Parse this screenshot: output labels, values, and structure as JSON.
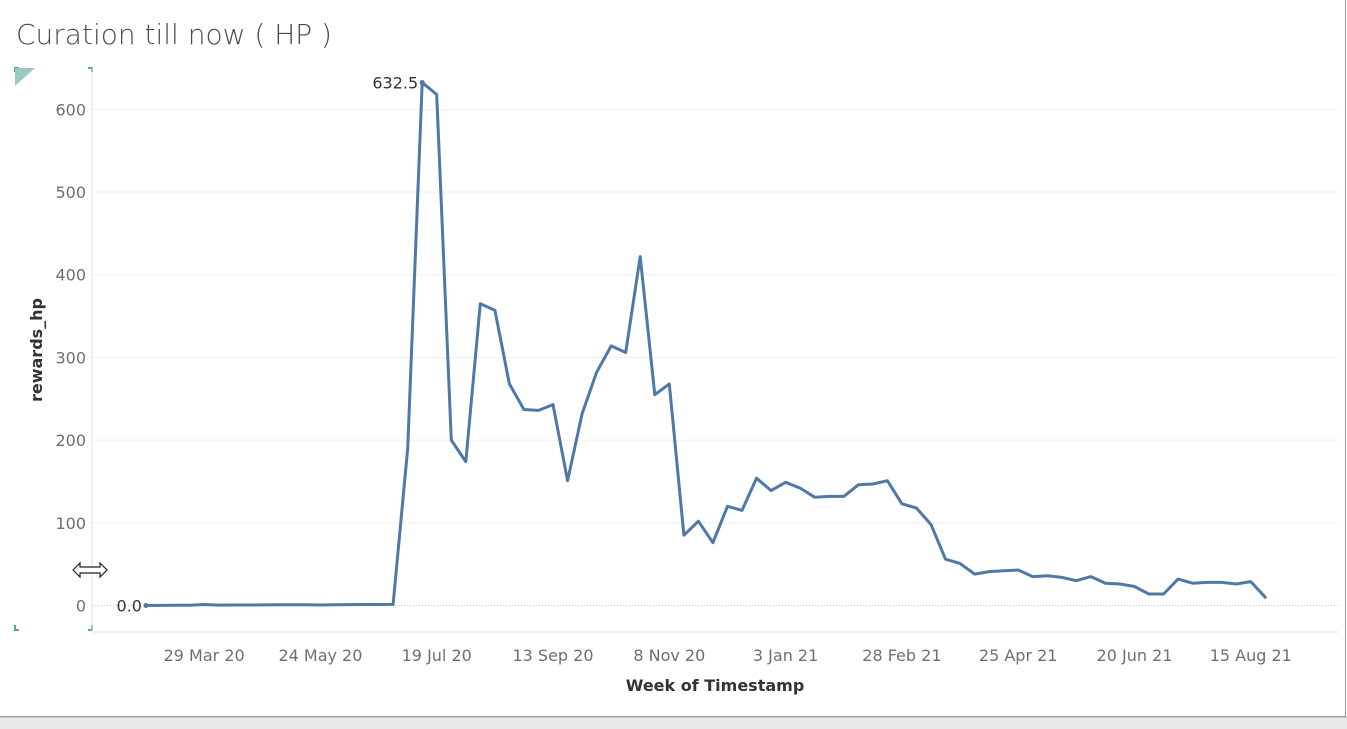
{
  "title": "Curation till now ( HP )",
  "chart_data": {
    "type": "line",
    "title": "Curation till now ( HP )",
    "xlabel": "Week of Timestamp",
    "ylabel": "rewards_hp",
    "ylim": [
      -32,
      650
    ],
    "y_ticks": [
      0,
      100,
      200,
      300,
      400,
      500,
      600
    ],
    "x_start": "2020-03-01",
    "x_end": "2021-08-29",
    "x_range": [
      "2020-02-04",
      "2021-09-26"
    ],
    "x_ticks": [
      {
        "date": "2020-03-29",
        "label": "29 Mar 20"
      },
      {
        "date": "2020-05-24",
        "label": "24 May 20"
      },
      {
        "date": "2020-07-19",
        "label": "19 Jul 20"
      },
      {
        "date": "2020-09-13",
        "label": "13 Sep 20"
      },
      {
        "date": "2020-11-08",
        "label": "8 Nov 20"
      },
      {
        "date": "2021-01-03",
        "label": "3 Jan 21"
      },
      {
        "date": "2021-02-28",
        "label": "28 Feb 21"
      },
      {
        "date": "2021-04-25",
        "label": "25 Apr 21"
      },
      {
        "date": "2021-06-20",
        "label": "20 Jun 21"
      },
      {
        "date": "2021-08-15",
        "label": "15 Aug 21"
      }
    ],
    "grid": true,
    "line_color": "#4e79a7",
    "series": [
      {
        "name": "",
        "values": [
          0.0,
          0.2,
          0.3,
          0.4,
          1.2,
          0.5,
          0.6,
          0.7,
          0.8,
          0.9,
          1.0,
          0.9,
          0.7,
          1.0,
          1.1,
          1.2,
          1.3,
          1.4,
          190,
          632.5,
          618,
          200,
          174,
          365,
          357,
          268,
          237,
          236,
          243,
          151,
          232,
          282,
          314,
          306,
          422,
          255,
          268,
          85,
          102,
          76,
          120,
          115,
          154,
          139,
          149,
          142,
          131,
          132,
          132,
          146,
          147,
          151,
          123,
          118,
          98,
          56,
          51,
          38,
          41,
          42,
          43,
          35,
          36,
          34,
          30,
          35,
          27,
          26,
          23,
          14,
          14,
          32,
          27,
          28,
          28,
          26,
          29,
          10
        ]
      }
    ],
    "annotations": [
      {
        "index": 19,
        "label": "632.5"
      },
      {
        "index": 0,
        "label": "0.0"
      }
    ]
  }
}
